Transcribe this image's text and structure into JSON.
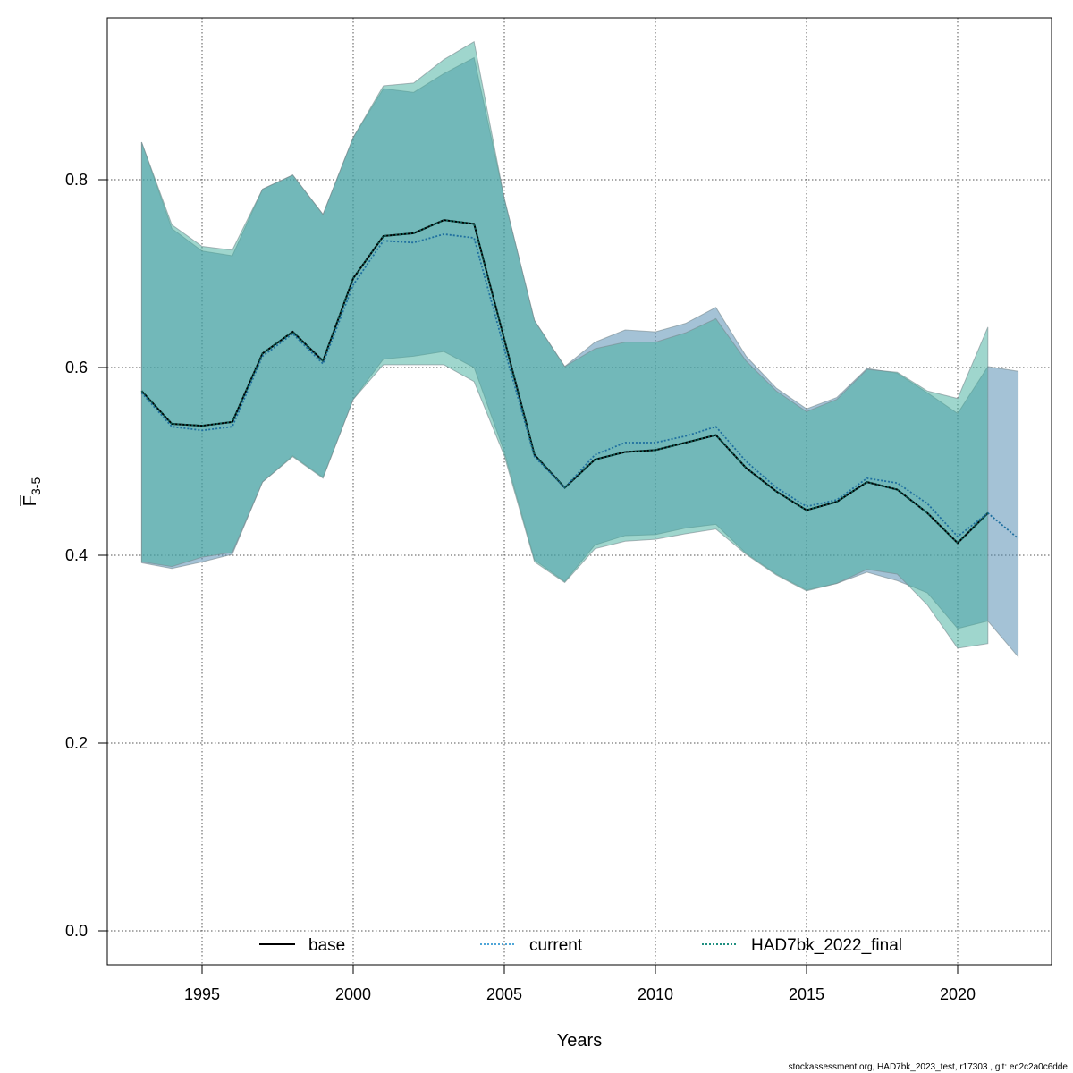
{
  "chart_data": {
    "type": "line",
    "title": "",
    "xlabel": "Years",
    "ylabel": "F",
    "ylabel_subscript": "3-5",
    "xlim": [
      1991.7,
      2023.1
    ],
    "ylim": [
      -0.04,
      0.97
    ],
    "xticks": [
      1995,
      2000,
      2005,
      2010,
      2015,
      2020
    ],
    "yticks": [
      0.0,
      0.2,
      0.4,
      0.6,
      0.8
    ],
    "ytick_labels": [
      "0.0",
      "0.2",
      "0.4",
      "0.6",
      "0.8"
    ],
    "grid": true,
    "legend_placement": "bottom",
    "footer": "stockassessment.org, HAD7bk_2023_test, r17303 , git: ec2c2a0c6dde",
    "bands": [
      {
        "name": "current",
        "color": "#4a86ad",
        "x": [
          1993,
          1994,
          1995,
          1996,
          1997,
          1998,
          1999,
          2000,
          2001,
          2002,
          2003,
          2004,
          2005,
          2006,
          2007,
          2008,
          2009,
          2010,
          2011,
          2012,
          2013,
          2014,
          2015,
          2016,
          2017,
          2018,
          2019,
          2020,
          2021,
          2022
        ],
        "upper": [
          0.84,
          0.748,
          0.724,
          0.719,
          0.79,
          0.805,
          0.763,
          0.845,
          0.897,
          0.893,
          0.913,
          0.93,
          0.78,
          0.65,
          0.601,
          0.627,
          0.64,
          0.638,
          0.647,
          0.664,
          0.612,
          0.578,
          0.556,
          0.568,
          0.599,
          0.594,
          0.573,
          0.551,
          0.601,
          0.596
        ],
        "lower": [
          0.392,
          0.386,
          0.393,
          0.401,
          0.478,
          0.506,
          0.483,
          0.566,
          0.609,
          0.612,
          0.617,
          0.6,
          0.51,
          0.395,
          0.372,
          0.411,
          0.421,
          0.422,
          0.429,
          0.433,
          0.402,
          0.38,
          0.363,
          0.37,
          0.382,
          0.373,
          0.36,
          0.322,
          0.33,
          0.292
        ]
      },
      {
        "name": "HAD7bk_2022_final",
        "color": "#3fae9c",
        "x": [
          1993,
          1994,
          1995,
          1996,
          1997,
          1998,
          1999,
          2000,
          2001,
          2002,
          2003,
          2004,
          2005,
          2006,
          2007,
          2008,
          2009,
          2010,
          2011,
          2012,
          2013,
          2014,
          2015,
          2016,
          2017,
          2018,
          2019,
          2020,
          2021
        ],
        "upper": [
          0.84,
          0.752,
          0.729,
          0.725,
          0.79,
          0.805,
          0.763,
          0.845,
          0.9,
          0.903,
          0.928,
          0.947,
          0.78,
          0.65,
          0.601,
          0.62,
          0.627,
          0.627,
          0.637,
          0.652,
          0.607,
          0.575,
          0.553,
          0.566,
          0.598,
          0.595,
          0.575,
          0.567,
          0.643
        ],
        "lower": [
          0.393,
          0.388,
          0.398,
          0.403,
          0.478,
          0.505,
          0.482,
          0.566,
          0.603,
          0.603,
          0.603,
          0.585,
          0.506,
          0.393,
          0.371,
          0.407,
          0.415,
          0.417,
          0.423,
          0.428,
          0.401,
          0.379,
          0.362,
          0.37,
          0.385,
          0.38,
          0.347,
          0.301,
          0.306
        ]
      }
    ],
    "series": [
      {
        "name": "base",
        "color": "#000000",
        "style": "solid",
        "x": [
          1993,
          1994,
          1995,
          1996,
          1997,
          1998,
          1999,
          2000,
          2001,
          2002,
          2003,
          2004,
          2005,
          2006,
          2007,
          2008,
          2009,
          2010,
          2011,
          2012,
          2013,
          2014,
          2015,
          2016,
          2017,
          2018,
          2019,
          2020,
          2021
        ],
        "values": [
          0.575,
          0.54,
          0.538,
          0.542,
          0.615,
          0.638,
          0.607,
          0.695,
          0.74,
          0.743,
          0.757,
          0.753,
          0.63,
          0.507,
          0.472,
          0.502,
          0.51,
          0.512,
          0.52,
          0.528,
          0.493,
          0.468,
          0.448,
          0.457,
          0.478,
          0.47,
          0.445,
          0.413,
          0.445
        ]
      },
      {
        "name": "current",
        "color": "#1f6f9f",
        "style": "dotted",
        "x": [
          1993,
          1994,
          1995,
          1996,
          1997,
          1998,
          1999,
          2000,
          2001,
          2002,
          2003,
          2004,
          2005,
          2006,
          2007,
          2008,
          2009,
          2010,
          2011,
          2012,
          2013,
          2014,
          2015,
          2016,
          2017,
          2018,
          2019,
          2020,
          2021,
          2022
        ],
        "values": [
          0.573,
          0.537,
          0.533,
          0.537,
          0.612,
          0.636,
          0.604,
          0.688,
          0.735,
          0.733,
          0.742,
          0.738,
          0.62,
          0.505,
          0.472,
          0.507,
          0.52,
          0.52,
          0.527,
          0.537,
          0.5,
          0.472,
          0.452,
          0.459,
          0.482,
          0.477,
          0.455,
          0.42,
          0.445,
          0.418
        ]
      },
      {
        "name": "HAD7bk_2022_final",
        "color": "#0d5a52",
        "style": "dotted",
        "x": [
          1993,
          1994,
          1995,
          1996,
          1997,
          1998,
          1999,
          2000,
          2001,
          2002,
          2003,
          2004,
          2005,
          2006,
          2007,
          2008,
          2009,
          2010,
          2011,
          2012,
          2013,
          2014,
          2015,
          2016,
          2017,
          2018,
          2019,
          2020,
          2021
        ],
        "values": [
          0.575,
          0.54,
          0.538,
          0.542,
          0.615,
          0.638,
          0.607,
          0.695,
          0.74,
          0.743,
          0.757,
          0.753,
          0.63,
          0.507,
          0.472,
          0.502,
          0.51,
          0.512,
          0.52,
          0.528,
          0.493,
          0.468,
          0.448,
          0.457,
          0.478,
          0.47,
          0.445,
          0.413,
          0.445
        ]
      }
    ],
    "legend": [
      {
        "label": "base",
        "color": "#000000",
        "style": "solid"
      },
      {
        "label": "current",
        "color": "#4fa6d8",
        "style": "dotted"
      },
      {
        "label": "HAD7bk_2022_final",
        "color": "#1f8f80",
        "style": "dotted"
      }
    ]
  }
}
